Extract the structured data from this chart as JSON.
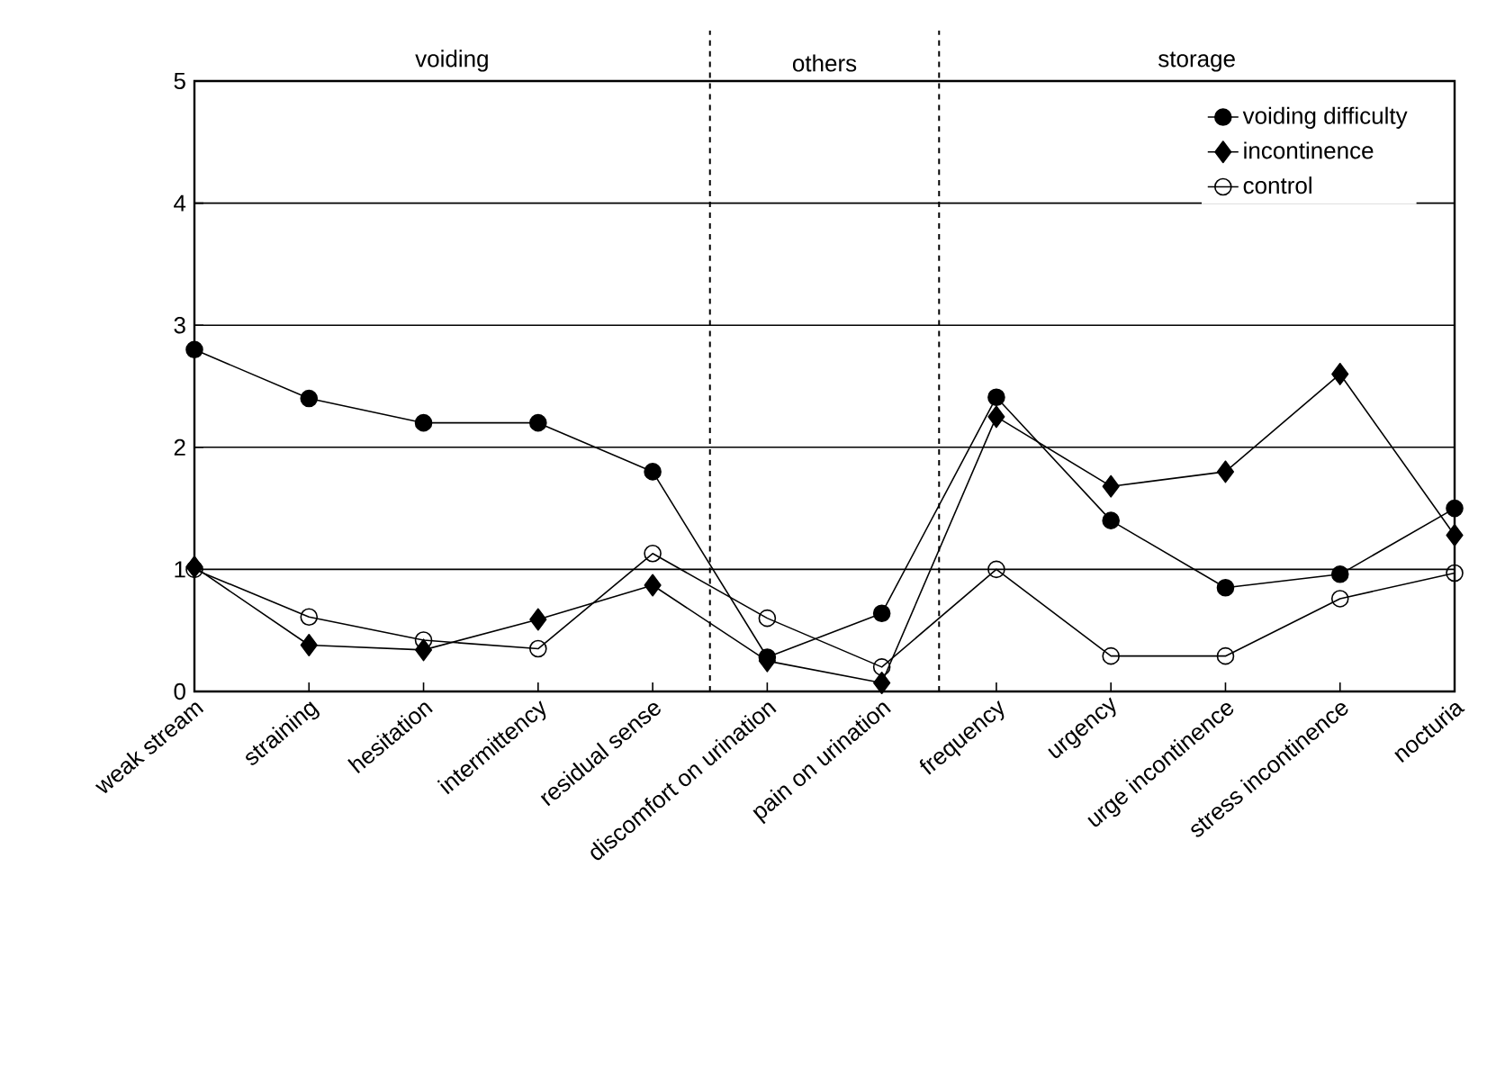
{
  "chart_data": {
    "type": "line",
    "categories": [
      "weak stream",
      "straining",
      "hesitation",
      "intermittency",
      "residual sense",
      "discomfort on urination",
      "pain on urination",
      "frequency",
      "urgency",
      "urge incontinence",
      "stress incontinence",
      "nocturia"
    ],
    "series": [
      {
        "name": "voiding difficulty",
        "color": "#000000",
        "marker": "circle",
        "values": [
          2.8,
          2.4,
          2.2,
          2.2,
          1.8,
          0.28,
          0.64,
          2.41,
          1.4,
          0.85,
          0.96,
          1.5
        ]
      },
      {
        "name": "incontinence",
        "color": "#000000",
        "marker": "diamond",
        "values": [
          1.02,
          0.38,
          0.34,
          0.59,
          0.87,
          0.25,
          0.07,
          2.25,
          1.68,
          1.8,
          2.6,
          1.28
        ]
      },
      {
        "name": "control",
        "color": "#000000",
        "marker": "circle-open",
        "values": [
          1.0,
          0.61,
          0.42,
          0.35,
          1.13,
          0.6,
          0.2,
          1.0,
          0.29,
          0.29,
          0.76,
          0.97
        ]
      }
    ],
    "ylim": [
      0,
      5
    ],
    "yticks": [
      0,
      1,
      2,
      3,
      4,
      5
    ],
    "grid": "y",
    "legend": "top right",
    "line_style": "solid",
    "annotations": [
      "voiding",
      "others",
      "storage"
    ]
  }
}
